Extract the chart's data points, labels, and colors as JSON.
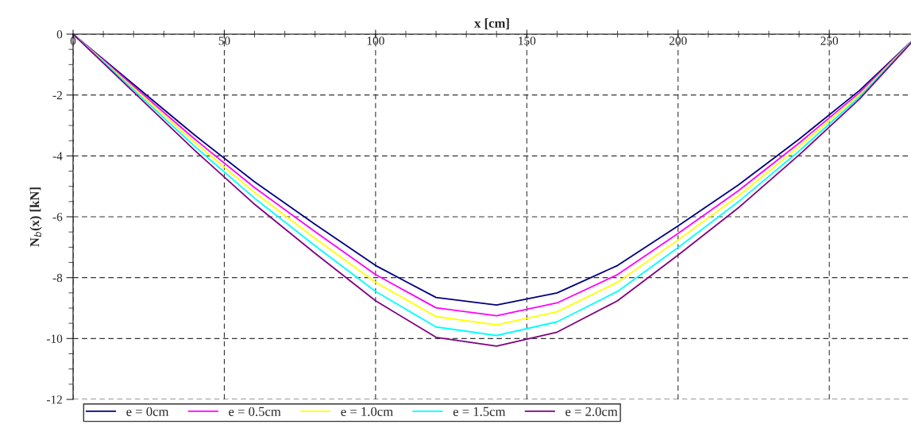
{
  "chart_data": {
    "type": "line",
    "xlabel": "x [cm]",
    "ylabel": "N$_{b}$(x) [kN]",
    "x": [
      0,
      20,
      40,
      60,
      80,
      100,
      120,
      140,
      160,
      180,
      200,
      220,
      240,
      260,
      277
    ],
    "series": [
      {
        "name": "e = 0cm",
        "color": "#000080",
        "values": [
          0,
          -1.65,
          -3.3,
          -4.85,
          -6.25,
          -7.6,
          -8.65,
          -8.9,
          -8.5,
          -7.6,
          -6.3,
          -4.95,
          -3.45,
          -1.85,
          -0.25
        ]
      },
      {
        "name": "e = 0.5cm",
        "color": "#ff00ff",
        "values": [
          0,
          -1.71,
          -3.43,
          -5.04,
          -6.49,
          -7.9,
          -8.99,
          -9.25,
          -8.83,
          -7.9,
          -6.55,
          -5.14,
          -3.58,
          -1.92,
          -0.26
        ]
      },
      {
        "name": "e = 1.0cm",
        "color": "#ffff00",
        "values": [
          0,
          -1.77,
          -3.54,
          -5.2,
          -6.71,
          -8.15,
          -9.28,
          -9.55,
          -9.12,
          -8.15,
          -6.76,
          -5.31,
          -3.7,
          -1.99,
          -0.27
        ]
      },
      {
        "name": "e = 1.5cm",
        "color": "#00ffff",
        "values": [
          0,
          -1.83,
          -3.67,
          -5.39,
          -6.95,
          -8.45,
          -9.62,
          -9.9,
          -9.45,
          -8.45,
          -7.01,
          -5.5,
          -3.84,
          -2.06,
          -0.28
        ]
      },
      {
        "name": "e = 2.0cm",
        "color": "#800080",
        "values": [
          0,
          -1.9,
          -3.8,
          -5.59,
          -7.2,
          -8.76,
          -9.96,
          -10.25,
          -9.79,
          -8.76,
          -7.26,
          -5.7,
          -3.97,
          -2.13,
          -0.29
        ]
      }
    ],
    "xlim": [
      0,
      277
    ],
    "xticks": [
      0,
      50,
      100,
      150,
      200,
      250
    ],
    "ylim": [
      -12,
      0
    ],
    "yticks": [
      -12,
      -10,
      -8,
      -6,
      -4,
      -2,
      0
    ],
    "grid": true,
    "legend": "bottom",
    "marker": "none",
    "line_style": "solid"
  }
}
